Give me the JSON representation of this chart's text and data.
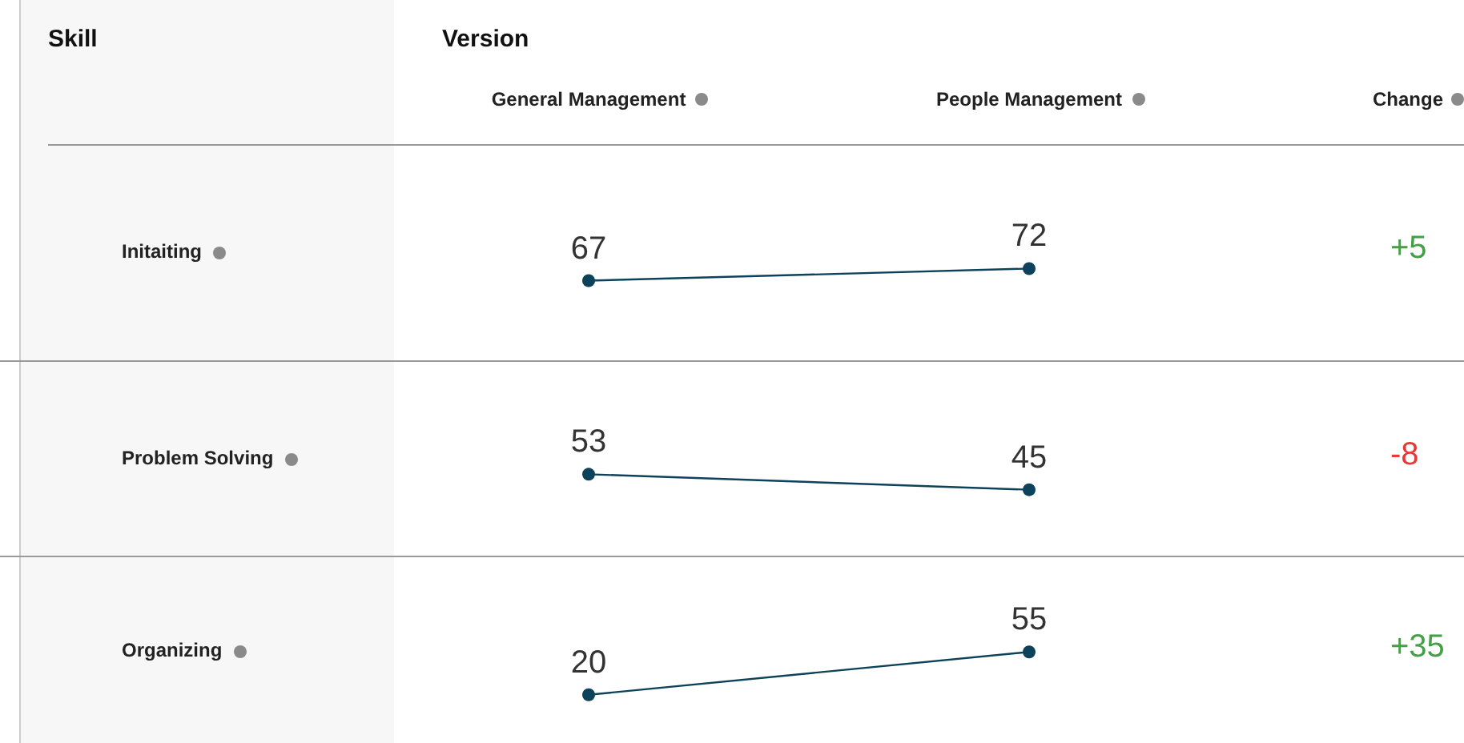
{
  "chart_data": [
    {
      "type": "line",
      "title": "Version",
      "ylabel": "Initaiting",
      "categories": [
        "General Management",
        "People Management"
      ],
      "tick_labels": "x",
      "marker": "circle",
      "data_labels": true,
      "annotations": [
        "Skill",
        "Change",
        "+5"
      ],
      "series": [
        {
          "color": "#0d425a",
          "values": [
            67,
            72
          ]
        }
      ]
    },
    {
      "type": "line",
      "ylabel": "Problem Solving",
      "categories": [
        null,
        null
      ],
      "tick_labels": false,
      "marker": "circle",
      "data_labels": true,
      "annotations": [
        "-8"
      ],
      "series": [
        {
          "color": "#0d425a",
          "values": [
            53,
            45
          ]
        }
      ]
    },
    {
      "type": "line",
      "ylabel": "Organizing",
      "categories": [
        null,
        null
      ],
      "tick_labels": false,
      "marker": "circle",
      "data_labels": true,
      "annotations": [
        "+35"
      ],
      "series": [
        {
          "color": "#0d425a",
          "values": [
            20,
            55
          ]
        }
      ]
    }
  ]
}
